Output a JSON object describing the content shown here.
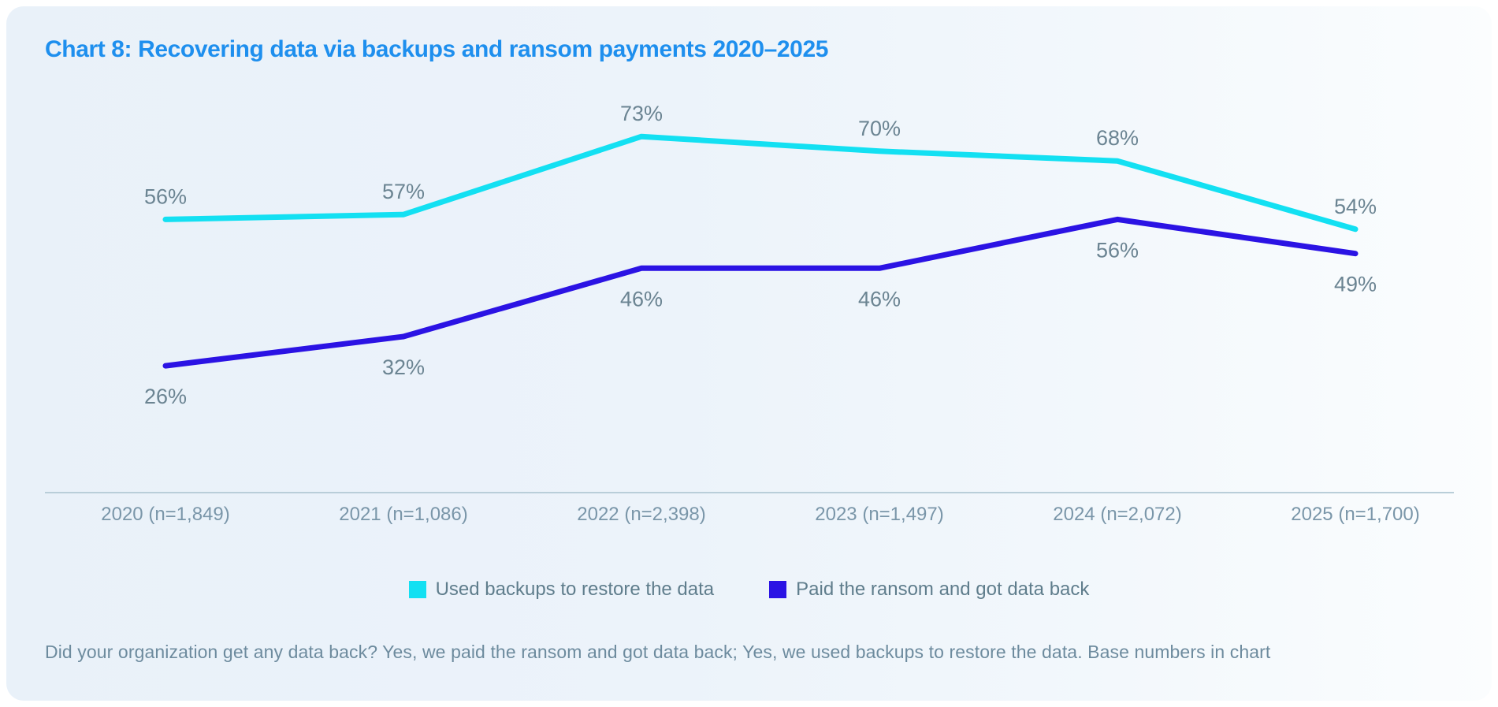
{
  "title": {
    "text": "Chart 8: Recovering data via backups and ransom payments 2020–2025",
    "color": "#1e8fee"
  },
  "chart_data": {
    "type": "line",
    "title": "Chart 8: Recovering data via backups and ransom payments 2020–2025",
    "categories": [
      "2020 (n=1,849)",
      "2021 (n=1,086)",
      "2022 (n=2,398)",
      "2023 (n=1,497)",
      "2024 (n=2,072)",
      "2025 (n=1,700)"
    ],
    "series": [
      {
        "name": "Used backups to restore the data",
        "color": "#13e0f2",
        "values": [
          56,
          57,
          73,
          70,
          68,
          54
        ],
        "label_position": "above"
      },
      {
        "name": "Paid the ransom and got data back",
        "color": "#2b13e4",
        "values": [
          26,
          32,
          46,
          46,
          56,
          49
        ],
        "label_position": "below"
      }
    ],
    "data_label_format": "percent",
    "ylim": [
      0,
      90
    ],
    "grid": false,
    "legend_position": "bottom",
    "xlabel": "",
    "ylabel": ""
  },
  "footnote": "Did your organization get any data back? Yes, we paid the ransom and got data back; Yes, we used backups to restore the data. Base numbers in chart",
  "colors": {
    "title": "#1e8fee",
    "backup_line": "#13e0f2",
    "ransom_line": "#2b13e4",
    "data_label": "#6b8492",
    "axis_label": "#7a96a9",
    "axis_line": "#b9ced9",
    "legend_text": "#5f7d8c",
    "footnote_text": "#6d8b9e",
    "card_bg_left": "#e9f1f9",
    "card_bg_right": "#fbfdfe"
  }
}
